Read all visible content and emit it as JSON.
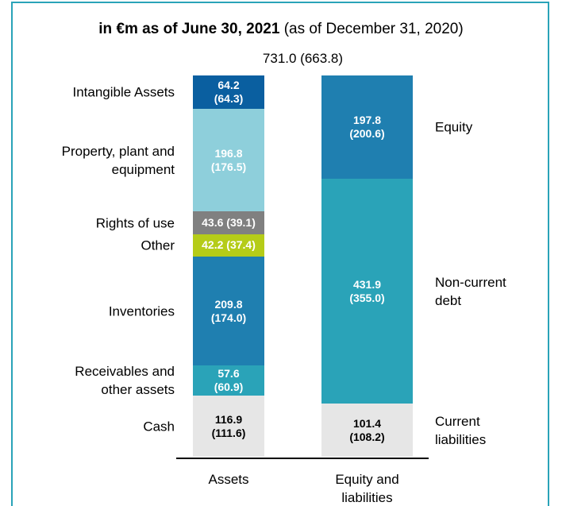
{
  "chart_data": {
    "type": "stacked_bar",
    "title": "in €m as of June 30, 2021",
    "subtitle": "(as of December 31, 2020)",
    "total_label": "731.0 (663.8)",
    "total": 731.0,
    "total_prior": 663.8,
    "categories": [
      "Assets",
      "Equity and\nliabilities"
    ],
    "stacks": [
      {
        "segments": [
          {
            "name": "Cash",
            "color": "#e6e6e6",
            "text_color": "#000000",
            "value": 116.9,
            "prior": 111.6,
            "value_label": "116.9\n(111.6)"
          },
          {
            "name": "Receivables and\nother assets",
            "color": "#2aa3b8",
            "text_color": "#ffffff",
            "value": 57.6,
            "prior": 60.9,
            "value_label": "57.6\n(60.9)"
          },
          {
            "name": "Inventories",
            "color": "#1f7fb0",
            "text_color": "#ffffff",
            "value": 209.8,
            "prior": 174.0,
            "value_label": "209.8\n(174.0)"
          },
          {
            "name": "Other",
            "color": "#b5cc18",
            "text_color": "#ffffff",
            "value": 42.2,
            "prior": 37.4,
            "value_label": "42.2 (37.4)"
          },
          {
            "name": "Rights of use",
            "color": "#808080",
            "text_color": "#ffffff",
            "value": 43.6,
            "prior": 39.1,
            "value_label": "43.6 (39.1)"
          },
          {
            "name": "Property, plant and\nequipment",
            "color": "#8ecfdb",
            "text_color": "#ffffff",
            "value": 196.8,
            "prior": 176.5,
            "value_label": "196.8\n(176.5)"
          },
          {
            "name": "Intangible Assets",
            "color": "#0a5fa0",
            "text_color": "#ffffff",
            "value": 64.2,
            "prior": 64.3,
            "value_label": "64.2\n(64.3)"
          }
        ]
      },
      {
        "segments": [
          {
            "name": "Current\nliabilities",
            "color": "#e6e6e6",
            "text_color": "#000000",
            "value": 101.4,
            "prior": 108.2,
            "value_label": "101.4\n(108.2)"
          },
          {
            "name": "Non-current\ndebt",
            "color": "#2aa3b8",
            "text_color": "#ffffff",
            "value": 431.9,
            "prior": 355.0,
            "value_label": "431.9\n(355.0)"
          },
          {
            "name": "Equity",
            "color": "#1f7fb0",
            "text_color": "#ffffff",
            "value": 197.8,
            "prior": 200.6,
            "value_label": "197.8\n(200.6)"
          }
        ]
      }
    ]
  }
}
